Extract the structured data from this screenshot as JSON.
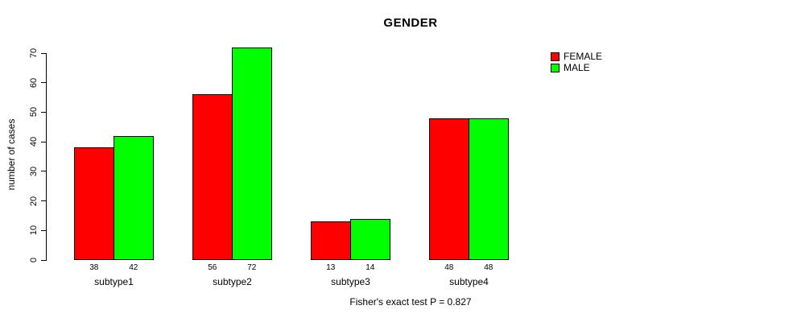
{
  "title": "GENDER",
  "caption": "Fisher's exact test P = 0.827",
  "y_axis": {
    "label": "number of cases",
    "ticks": [
      0,
      10,
      20,
      30,
      40,
      50,
      60,
      70
    ]
  },
  "legend": {
    "items": [
      {
        "label": "FEMALE",
        "color": "#ff0000"
      },
      {
        "label": "MALE",
        "color": "#00ff00"
      }
    ]
  },
  "colors": {
    "bar_border": "#000000",
    "text": "#000000",
    "background": "#ffffff"
  },
  "chart_data": {
    "type": "bar",
    "title": "GENDER",
    "categories": [
      "subtype1",
      "subtype2",
      "subtype3",
      "subtype4"
    ],
    "series": [
      {
        "name": "FEMALE",
        "color": "#ff0000",
        "values": [
          38,
          56,
          13,
          48
        ]
      },
      {
        "name": "MALE",
        "color": "#00ff00",
        "values": [
          42,
          72,
          14,
          48
        ]
      }
    ],
    "xlabel": "",
    "ylabel": "number of cases",
    "ylim": [
      0,
      70
    ],
    "y_tick_step": 10,
    "grid": false,
    "bar_value_labels_shown": true,
    "legend_position": "top-right",
    "annotation": "Fisher's exact test P = 0.827"
  }
}
